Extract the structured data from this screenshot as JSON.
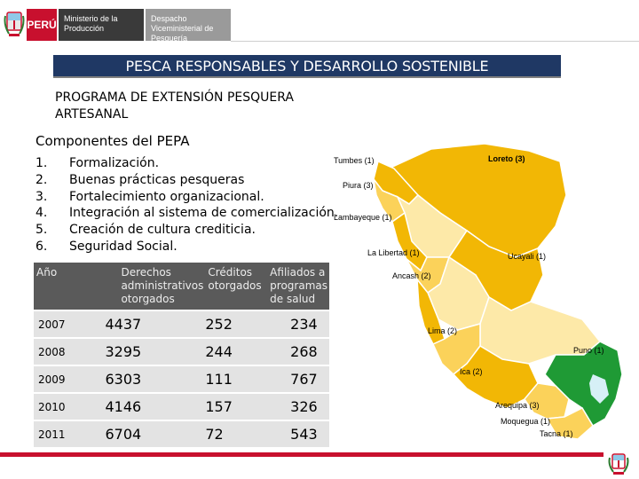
{
  "header": {
    "country": "PERÚ",
    "ministry": "Ministerio de la Producción",
    "vice_ministry": "Despacho Viceministerial de Pesquería"
  },
  "banner_title": "PESCA RESPONSABLES Y DESARROLLO SOSTENIBLE",
  "program_title": "PROGRAMA DE EXTENSIÓN PESQUERA ARTESANAL",
  "components": {
    "title": "Componentes del PEPA",
    "items": [
      {
        "n": "1.",
        "text": "Formalización."
      },
      {
        "n": "2.",
        "text": "Buenas prácticas pesqueras"
      },
      {
        "n": "3.",
        "text": "Fortalecimiento organizacional."
      },
      {
        "n": "4.",
        "text": "Integración al sistema de comercialización."
      },
      {
        "n": "5.",
        "text": "Creación de cultura crediticia."
      },
      {
        "n": "6.",
        "text": "Seguridad Social."
      }
    ]
  },
  "table": {
    "headers": [
      "Año",
      "Derechos administrativos otorgados",
      "Créditos otorgados",
      "Afiliados a programas de salud"
    ],
    "rows": [
      [
        "2007",
        "4437",
        "252",
        "234"
      ],
      [
        "2008",
        "3295",
        "244",
        "268"
      ],
      [
        "2009",
        "6303",
        "111",
        "767"
      ],
      [
        "2010",
        "4146",
        "157",
        "326"
      ],
      [
        "2011",
        "6704",
        "72",
        "543"
      ]
    ]
  },
  "map": {
    "colors": {
      "highlight": "#f2b705",
      "light": "#fbd25a",
      "puno": "#1f9a35",
      "lake": "#d6f0f6",
      "other": "#fde9a8"
    },
    "labels": [
      "Tumbes (1)",
      "Loreto (3)",
      "Piura (3)",
      "Lambayeque (1)",
      "La Libertad (1)",
      "Ucayali (1)",
      "Ancash (2)",
      "Lima (2)",
      "Puno (1)",
      "Ica (2)",
      "Arequipa (3)",
      "Moquegua (1)",
      "Tacna (1)"
    ]
  }
}
